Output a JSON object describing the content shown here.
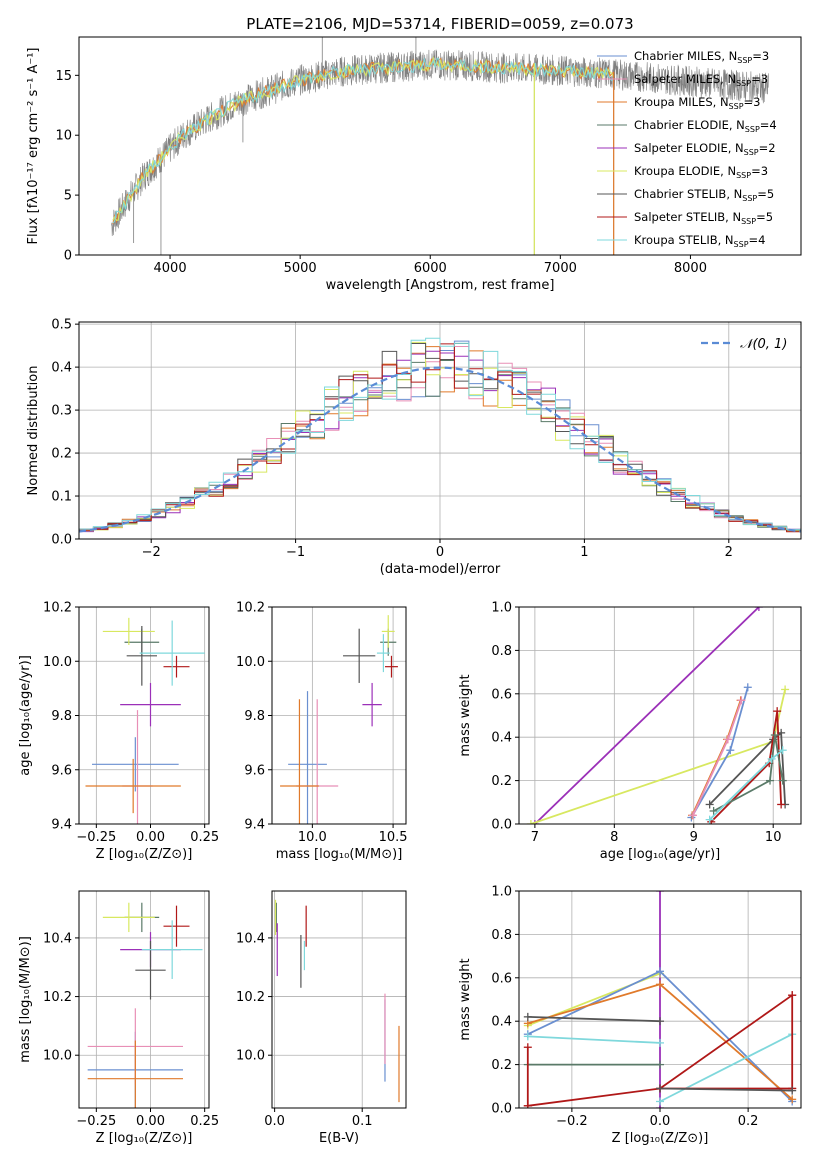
{
  "colors": {
    "chabrier_miles": "#6a8fd0",
    "salpeter_miles": "#e88fb6",
    "kroupa_miles": "#e07a2b",
    "chabrier_elodie": "#5a7a68",
    "salpeter_elodie": "#9b30b8",
    "kroupa_elodie": "#d8e860",
    "chabrier_stelib": "#555555",
    "salpeter_stelib": "#b01818",
    "kroupa_stelib": "#7fd8dc",
    "spectrum": "#808080",
    "gauss": "#5a8bd5"
  },
  "chart_data": [
    {
      "id": "spectrum",
      "type": "line",
      "title": "PLATE=2106, MJD=53714, FIBERID=0059, z=0.073",
      "xlabel": "wavelength [Angstrom, rest frame]",
      "ylabel": "Flux [fλ10⁻¹⁷ erg cm⁻² s⁻¹ A⁻¹]",
      "xlim": [
        3300,
        8850
      ],
      "ylim": [
        0,
        18.2
      ],
      "xticks": [
        4000,
        5000,
        6000,
        7000,
        8000
      ],
      "yticks": [
        0,
        5,
        10,
        15
      ],
      "grid": false,
      "legend_position": "right",
      "legend": [
        {
          "key": "chabrier_miles",
          "label": "Chabrier MILES, N",
          "sub": "SSP",
          "suffix": "=3"
        },
        {
          "key": "salpeter_miles",
          "label": "Salpeter MILES, N",
          "sub": "SSP",
          "suffix": "=3"
        },
        {
          "key": "kroupa_miles",
          "label": "Kroupa MILES, N",
          "sub": "SSP",
          "suffix": "=3"
        },
        {
          "key": "chabrier_elodie",
          "label": "Chabrier ELODIE, N",
          "sub": "SSP",
          "suffix": "=4"
        },
        {
          "key": "salpeter_elodie",
          "label": "Salpeter ELODIE, N",
          "sub": "SSP",
          "suffix": "=2"
        },
        {
          "key": "kroupa_elodie",
          "label": "Kroupa ELODIE, N",
          "sub": "SSP",
          "suffix": "=3"
        },
        {
          "key": "chabrier_stelib",
          "label": "Chabrier STELIB, N",
          "sub": "SSP",
          "suffix": "=5"
        },
        {
          "key": "salpeter_stelib",
          "label": "Salpeter STELIB, N",
          "sub": "SSP",
          "suffix": "=5"
        },
        {
          "key": "kroupa_stelib",
          "label": "Kroupa STELIB, N",
          "sub": "SSP",
          "suffix": "=4"
        }
      ],
      "continuum": {
        "x": [
          3550,
          3650,
          3800,
          3950,
          4100,
          4300,
          4500,
          4700,
          5000,
          5300,
          5600,
          6000,
          6300,
          6600,
          7000,
          7400,
          7800,
          8200,
          8600
        ],
        "y": [
          2.5,
          4.2,
          6.6,
          8.3,
          10.0,
          11.4,
          12.6,
          13.5,
          14.6,
          15.3,
          15.6,
          15.9,
          15.8,
          15.6,
          15.4,
          15.1,
          14.7,
          14.3,
          13.9
        ]
      },
      "spikes": [
        [
          3720,
          1.0
        ],
        [
          3930,
          0.0
        ],
        [
          4560,
          9.4
        ],
        [
          5170,
          18.2
        ],
        [
          5890,
          18.2
        ],
        [
          6800,
          0.0
        ],
        [
          7410,
          0.0
        ]
      ]
    },
    {
      "id": "residuals",
      "type": "bar",
      "xlabel": "(data-model)/error",
      "ylabel": "Normed distribution",
      "xlim": [
        -2.5,
        2.5
      ],
      "ylim": [
        0,
        0.505
      ],
      "xticks": [
        -2,
        -1,
        0,
        1,
        2
      ],
      "yticks": [
        0.0,
        0.1,
        0.2,
        0.3,
        0.4,
        0.5
      ],
      "grid": true,
      "legend_position": "top-right",
      "legend": [
        {
          "label": "𝒩(0, 1)",
          "style": "dashed"
        }
      ],
      "bin_width": 0.1,
      "gauss": {
        "mean": 0,
        "sigma": 1
      }
    },
    {
      "id": "age_vs_z",
      "type": "scatter",
      "xlabel": "Z [log₁₀(Z/Z⊙)]",
      "ylabel": "age  [log₁₀(age/yr)]",
      "xlim": [
        -0.33,
        0.27
      ],
      "ylim": [
        9.4,
        10.2
      ],
      "xticks": [
        -0.25,
        0.0,
        0.25
      ],
      "yticks": [
        9.4,
        9.6,
        9.8,
        10.0,
        10.2
      ],
      "grid": true,
      "points": [
        {
          "key": "chabrier_miles",
          "x": -0.07,
          "y": 9.62,
          "xerr": 0.2,
          "yerr": 0.1
        },
        {
          "key": "salpeter_miles",
          "x": -0.06,
          "y": 9.54,
          "xerr": 0.07,
          "yerr": 0.28
        },
        {
          "key": "kroupa_miles",
          "x": -0.08,
          "y": 9.54,
          "xerr": 0.22,
          "yerr": 0.1
        },
        {
          "key": "chabrier_elodie",
          "x": -0.04,
          "y": 10.07,
          "xerr": 0.08,
          "yerr": 0.05
        },
        {
          "key": "salpeter_elodie",
          "x": 0.0,
          "y": 9.84,
          "xerr": 0.14,
          "yerr": 0.08
        },
        {
          "key": "kroupa_elodie",
          "x": -0.1,
          "y": 10.11,
          "xerr": 0.12,
          "yerr": 0.05
        },
        {
          "key": "chabrier_stelib",
          "x": -0.04,
          "y": 10.02,
          "xerr": 0.07,
          "yerr": 0.11
        },
        {
          "key": "salpeter_stelib",
          "x": 0.12,
          "y": 9.98,
          "xerr": 0.06,
          "yerr": 0.04
        },
        {
          "key": "kroupa_stelib",
          "x": 0.1,
          "y": 10.03,
          "xerr": 0.15,
          "yerr": 0.12
        }
      ]
    },
    {
      "id": "age_vs_mass",
      "type": "scatter",
      "xlabel": "mass [log₁₀(M/M⊙)]",
      "ylabel": "",
      "xlim": [
        9.75,
        10.58
      ],
      "ylim": [
        9.4,
        10.2
      ],
      "xticks": [
        10.0,
        10.5
      ],
      "yticks": [
        9.4,
        9.6,
        9.8,
        10.0,
        10.2
      ],
      "grid": true,
      "points": [
        {
          "key": "chabrier_miles",
          "x": 9.97,
          "y": 9.62,
          "xerr": 0.12,
          "yerr": 0.27
        },
        {
          "key": "salpeter_miles",
          "x": 10.03,
          "y": 9.54,
          "xerr": 0.13,
          "yerr": 0.32
        },
        {
          "key": "kroupa_miles",
          "x": 9.92,
          "y": 9.54,
          "xerr": 0.12,
          "yerr": 0.32
        },
        {
          "key": "chabrier_elodie",
          "x": 10.47,
          "y": 10.07,
          "xerr": 0.05,
          "yerr": 0.05
        },
        {
          "key": "salpeter_elodie",
          "x": 10.37,
          "y": 9.84,
          "xerr": 0.06,
          "yerr": 0.08
        },
        {
          "key": "kroupa_elodie",
          "x": 10.47,
          "y": 10.11,
          "xerr": 0.04,
          "yerr": 0.06
        },
        {
          "key": "chabrier_stelib",
          "x": 10.29,
          "y": 10.02,
          "xerr": 0.1,
          "yerr": 0.1
        },
        {
          "key": "salpeter_stelib",
          "x": 10.49,
          "y": 9.98,
          "xerr": 0.04,
          "yerr": 0.04
        },
        {
          "key": "kroupa_stelib",
          "x": 10.44,
          "y": 10.03,
          "xerr": 0.04,
          "yerr": 0.07
        }
      ]
    },
    {
      "id": "weight_vs_age",
      "type": "line",
      "xlabel": "age  [log₁₀(age/yr)]",
      "ylabel": "mass weight",
      "xlim": [
        6.8,
        10.35
      ],
      "ylim": [
        0,
        1.0
      ],
      "xticks": [
        7,
        8,
        9,
        10
      ],
      "yticks": [
        0.0,
        0.2,
        0.4,
        0.6,
        0.8,
        1.0
      ],
      "grid": true,
      "series": [
        {
          "key": "salpeter_elodie",
          "x": [
            7.0,
            9.82
          ],
          "y": [
            0.0,
            1.0
          ]
        },
        {
          "key": "kroupa_elodie",
          "x": [
            6.95,
            10.0,
            10.15
          ],
          "y": [
            0.0,
            0.38,
            0.62
          ]
        },
        {
          "key": "chabrier_miles",
          "x": [
            8.97,
            9.46,
            9.68
          ],
          "y": [
            0.03,
            0.34,
            0.63
          ]
        },
        {
          "key": "kroupa_miles",
          "x": [
            8.98,
            9.42,
            9.59
          ],
          "y": [
            0.04,
            0.39,
            0.57
          ]
        },
        {
          "key": "salpeter_miles",
          "x": [
            8.99,
            9.43,
            9.6
          ],
          "y": [
            0.04,
            0.39,
            0.57
          ]
        },
        {
          "key": "chabrier_stelib",
          "x": [
            9.2,
            10.0,
            10.1,
            10.15
          ],
          "y": [
            0.09,
            0.39,
            0.42,
            0.09
          ]
        },
        {
          "key": "salpeter_stelib",
          "x": [
            9.22,
            9.95,
            10.05,
            10.1
          ],
          "y": [
            0.01,
            0.28,
            0.52,
            0.09
          ]
        },
        {
          "key": "chabrier_elodie",
          "x": [
            9.25,
            9.96,
            10.02,
            10.12
          ],
          "y": [
            0.06,
            0.2,
            0.41,
            0.2
          ]
        },
        {
          "key": "kroupa_stelib",
          "x": [
            9.2,
            9.98,
            10.12
          ],
          "y": [
            0.02,
            0.3,
            0.34
          ]
        }
      ]
    },
    {
      "id": "mass_vs_z",
      "type": "scatter",
      "xlabel": "Z [log₁₀(Z/Z⊙)]",
      "ylabel": "mass [log₁₀(M/M⊙)]",
      "xlim": [
        -0.33,
        0.27
      ],
      "ylim": [
        9.82,
        10.56
      ],
      "xticks": [
        -0.25,
        0.0,
        0.25
      ],
      "yticks": [
        10.0,
        10.2,
        10.4
      ],
      "grid": true,
      "points": [
        {
          "key": "chabrier_miles",
          "x": -0.07,
          "y": 9.95,
          "xerr": 0.22,
          "yerr": 0.13
        },
        {
          "key": "salpeter_miles",
          "x": -0.07,
          "y": 10.03,
          "xerr": 0.22,
          "yerr": 0.13
        },
        {
          "key": "kroupa_miles",
          "x": -0.07,
          "y": 9.92,
          "xerr": 0.22,
          "yerr": 0.13
        },
        {
          "key": "chabrier_elodie",
          "x": -0.04,
          "y": 10.47,
          "xerr": 0.08,
          "yerr": 0.05
        },
        {
          "key": "salpeter_elodie",
          "x": 0.0,
          "y": 10.36,
          "xerr": 0.14,
          "yerr": 0.06
        },
        {
          "key": "kroupa_elodie",
          "x": -0.1,
          "y": 10.47,
          "xerr": 0.12,
          "yerr": 0.05
        },
        {
          "key": "chabrier_stelib",
          "x": 0.0,
          "y": 10.29,
          "xerr": 0.07,
          "yerr": 0.1
        },
        {
          "key": "salpeter_stelib",
          "x": 0.12,
          "y": 10.44,
          "xerr": 0.06,
          "yerr": 0.07
        },
        {
          "key": "kroupa_stelib",
          "x": 0.1,
          "y": 10.36,
          "xerr": 0.14,
          "yerr": 0.1
        }
      ]
    },
    {
      "id": "mass_vs_ebv",
      "type": "scatter",
      "xlabel": "E(B-V)",
      "ylabel": "",
      "xlim": [
        -0.003,
        0.15
      ],
      "ylim": [
        9.82,
        10.56
      ],
      "xticks": [
        0.0,
        0.1
      ],
      "yticks": [
        10.0,
        10.2,
        10.4
      ],
      "grid": true,
      "points": [
        {
          "key": "chabrier_miles",
          "x": 0.126,
          "y": 10.05,
          "xerr": 0.0,
          "yerr": 0.14
        },
        {
          "key": "salpeter_miles",
          "x": 0.126,
          "y": 10.09,
          "xerr": 0.0,
          "yerr": 0.12
        },
        {
          "key": "kroupa_miles",
          "x": 0.142,
          "y": 9.97,
          "xerr": 0.0,
          "yerr": 0.13
        },
        {
          "key": "chabrier_elodie",
          "x": 0.002,
          "y": 10.47,
          "xerr": 0.0,
          "yerr": 0.05
        },
        {
          "key": "salpeter_elodie",
          "x": 0.003,
          "y": 10.36,
          "xerr": 0.0,
          "yerr": 0.09
        },
        {
          "key": "kroupa_elodie",
          "x": 0.001,
          "y": 10.47,
          "xerr": 0.0,
          "yerr": 0.06
        },
        {
          "key": "chabrier_stelib",
          "x": 0.03,
          "y": 10.32,
          "xerr": 0.0,
          "yerr": 0.09
        },
        {
          "key": "salpeter_stelib",
          "x": 0.036,
          "y": 10.44,
          "xerr": 0.0,
          "yerr": 0.07
        },
        {
          "key": "kroupa_stelib",
          "x": 0.034,
          "y": 10.34,
          "xerr": 0.0,
          "yerr": 0.05
        }
      ]
    },
    {
      "id": "weight_vs_z",
      "type": "line",
      "xlabel": "Z [log₁₀(Z/Z⊙)]",
      "ylabel": "mass weight",
      "xlim": [
        -0.32,
        0.32
      ],
      "ylim": [
        0,
        1.0
      ],
      "xticks": [
        -0.2,
        0.0,
        0.2
      ],
      "yticks": [
        0.0,
        0.2,
        0.4,
        0.6,
        0.8,
        1.0
      ],
      "grid": true,
      "series": [
        {
          "key": "salpeter_elodie",
          "x": [
            0.0,
            0.0
          ],
          "y": [
            0.0,
            1.0
          ]
        },
        {
          "key": "kroupa_elodie",
          "x": [
            -0.3,
            0.0
          ],
          "y": [
            0.38,
            0.62
          ]
        },
        {
          "key": "chabrier_miles",
          "x": [
            -0.3,
            0.0,
            0.3
          ],
          "y": [
            0.34,
            0.63,
            0.03
          ]
        },
        {
          "key": "kroupa_miles",
          "x": [
            -0.3,
            0.0,
            0.3
          ],
          "y": [
            0.39,
            0.57,
            0.04
          ]
        },
        {
          "key": "chabrier_stelib",
          "x": [
            -0.3,
            0.0
          ],
          "y": [
            0.42,
            0.4
          ]
        },
        {
          "key": "chabrier_elodie",
          "x": [
            -0.3,
            0.0
          ],
          "y": [
            0.2,
            0.2
          ]
        },
        {
          "key": "kroupa_stelib",
          "x": [
            -0.3,
            0.0
          ],
          "y": [
            0.33,
            0.3
          ]
        },
        {
          "key": "kroupa_stelib",
          "x": [
            0.0,
            0.3
          ],
          "y": [
            0.03,
            0.34
          ]
        },
        {
          "key": "salpeter_stelib",
          "x": [
            -0.3,
            -0.3
          ],
          "y": [
            0.01,
            0.28
          ]
        },
        {
          "key": "salpeter_stelib",
          "x": [
            -0.3,
            0.0,
            0.3
          ],
          "y": [
            0.01,
            0.09,
            0.52
          ]
        },
        {
          "key": "salpeter_stelib",
          "x": [
            0.0,
            0.3
          ],
          "y": [
            0.09,
            0.09
          ]
        },
        {
          "key": "salpeter_stelib",
          "x": [
            0.3,
            0.3
          ],
          "y": [
            0.09,
            0.52
          ]
        },
        {
          "key": "chabrier_stelib",
          "x": [
            0.0,
            0.3
          ],
          "y": [
            0.09,
            0.08
          ]
        }
      ]
    }
  ]
}
